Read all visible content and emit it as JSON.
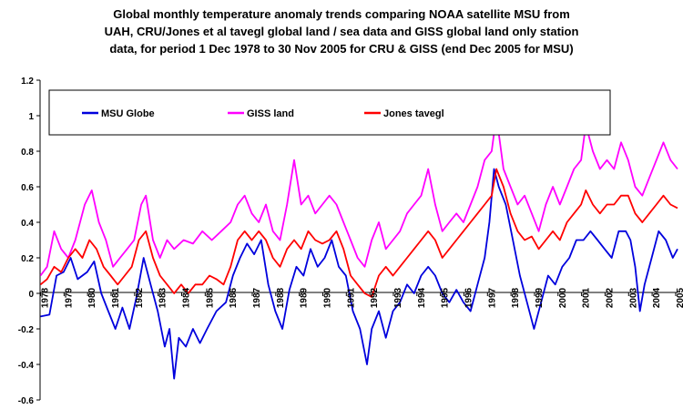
{
  "chart_data": {
    "type": "line",
    "title": [
      "Global monthly temperature anomaly trends comparing NOAA satellite MSU from",
      "UAH, CRU/Jones et al tavegl global land / sea data and GISS global land only station",
      "data, for period 1 Dec 1978 to 30 Nov 2005 for CRU & GISS  (end Dec 2005 for MSU)"
    ],
    "xlabel": "",
    "ylabel": "",
    "ylim": [
      -0.6,
      1.2
    ],
    "yticks": [
      "1.2",
      "1",
      "0.8",
      "0.6",
      "0.4",
      "0.2",
      "0",
      "-0.2",
      "-0.4",
      "-0.6"
    ],
    "ytick_values": [
      1.2,
      1.0,
      0.8,
      0.6,
      0.4,
      0.2,
      0.0,
      -0.2,
      -0.4,
      -0.6
    ],
    "xlim": [
      1978.9,
      2006.0
    ],
    "xticks": [
      "1978",
      "1979",
      "1980",
      "1981",
      "1982",
      "1983",
      "1984",
      "1985",
      "1986",
      "1987",
      "1988",
      "1989",
      "1990",
      "1991",
      "1992",
      "1993",
      "1994",
      "1995",
      "1996",
      "1997",
      "1998",
      "1999",
      "2000",
      "2001",
      "2002",
      "2003",
      "2004",
      "2005"
    ],
    "xtick_values": [
      1978.92,
      1979.92,
      1980.92,
      1981.92,
      1982.92,
      1983.92,
      1984.92,
      1985.92,
      1986.92,
      1987.92,
      1988.92,
      1989.92,
      1990.92,
      1991.92,
      1992.92,
      1993.92,
      1994.92,
      1995.92,
      1996.92,
      1997.92,
      1998.92,
      1999.92,
      2000.92,
      2001.92,
      2002.92,
      2003.92,
      2004.92,
      2005.92
    ],
    "grid": false,
    "legend_position": "top",
    "series": [
      {
        "name": "MSU Globe",
        "color": "#0000dd",
        "points": [
          [
            1978.92,
            -0.13
          ],
          [
            1979.3,
            -0.12
          ],
          [
            1979.6,
            0.1
          ],
          [
            1979.9,
            0.12
          ],
          [
            1980.2,
            0.2
          ],
          [
            1980.5,
            0.08
          ],
          [
            1980.9,
            0.12
          ],
          [
            1981.2,
            0.18
          ],
          [
            1981.5,
            0.0
          ],
          [
            1981.8,
            -0.1
          ],
          [
            1982.1,
            -0.2
          ],
          [
            1982.4,
            -0.08
          ],
          [
            1982.7,
            -0.2
          ],
          [
            1983.0,
            -0.02
          ],
          [
            1983.3,
            0.2
          ],
          [
            1983.6,
            0.05
          ],
          [
            1983.9,
            -0.1
          ],
          [
            1984.2,
            -0.3
          ],
          [
            1984.4,
            -0.2
          ],
          [
            1984.6,
            -0.48
          ],
          [
            1984.8,
            -0.25
          ],
          [
            1985.1,
            -0.3
          ],
          [
            1985.4,
            -0.2
          ],
          [
            1985.7,
            -0.28
          ],
          [
            1986.0,
            -0.2
          ],
          [
            1986.4,
            -0.1
          ],
          [
            1986.8,
            -0.05
          ],
          [
            1987.1,
            0.1
          ],
          [
            1987.4,
            0.2
          ],
          [
            1987.7,
            0.28
          ],
          [
            1988.0,
            0.22
          ],
          [
            1988.3,
            0.3
          ],
          [
            1988.6,
            0.05
          ],
          [
            1988.9,
            -0.1
          ],
          [
            1989.2,
            -0.2
          ],
          [
            1989.5,
            0.02
          ],
          [
            1989.8,
            0.15
          ],
          [
            1990.1,
            0.1
          ],
          [
            1990.4,
            0.25
          ],
          [
            1990.7,
            0.15
          ],
          [
            1991.0,
            0.2
          ],
          [
            1991.3,
            0.3
          ],
          [
            1991.6,
            0.15
          ],
          [
            1991.9,
            0.1
          ],
          [
            1992.2,
            -0.1
          ],
          [
            1992.5,
            -0.2
          ],
          [
            1992.8,
            -0.4
          ],
          [
            1993.0,
            -0.2
          ],
          [
            1993.3,
            -0.1
          ],
          [
            1993.6,
            -0.25
          ],
          [
            1993.9,
            -0.1
          ],
          [
            1994.2,
            -0.05
          ],
          [
            1994.5,
            0.05
          ],
          [
            1994.8,
            0.0
          ],
          [
            1995.1,
            0.1
          ],
          [
            1995.4,
            0.15
          ],
          [
            1995.7,
            0.1
          ],
          [
            1996.0,
            0.0
          ],
          [
            1996.3,
            -0.05
          ],
          [
            1996.6,
            0.02
          ],
          [
            1996.9,
            -0.05
          ],
          [
            1997.2,
            -0.1
          ],
          [
            1997.5,
            0.05
          ],
          [
            1997.8,
            0.2
          ],
          [
            1998.0,
            0.4
          ],
          [
            1998.2,
            0.7
          ],
          [
            1998.4,
            0.6
          ],
          [
            1998.7,
            0.5
          ],
          [
            1999.0,
            0.3
          ],
          [
            1999.3,
            0.1
          ],
          [
            1999.6,
            -0.05
          ],
          [
            1999.9,
            -0.2
          ],
          [
            2000.2,
            -0.05
          ],
          [
            2000.5,
            0.1
          ],
          [
            2000.8,
            0.05
          ],
          [
            2001.1,
            0.15
          ],
          [
            2001.4,
            0.2
          ],
          [
            2001.7,
            0.3
          ],
          [
            2002.0,
            0.3
          ],
          [
            2002.3,
            0.35
          ],
          [
            2002.6,
            0.3
          ],
          [
            2002.9,
            0.25
          ],
          [
            2003.2,
            0.2
          ],
          [
            2003.5,
            0.35
          ],
          [
            2003.8,
            0.35
          ],
          [
            2004.0,
            0.3
          ],
          [
            2004.2,
            0.15
          ],
          [
            2004.4,
            -0.1
          ],
          [
            2004.6,
            0.05
          ],
          [
            2004.9,
            0.2
          ],
          [
            2005.2,
            0.35
          ],
          [
            2005.5,
            0.3
          ],
          [
            2005.8,
            0.2
          ],
          [
            2006.0,
            0.25
          ]
        ]
      },
      {
        "name": "GISS land",
        "color": "#ff00ff",
        "points": [
          [
            1978.92,
            0.1
          ],
          [
            1979.2,
            0.15
          ],
          [
            1979.5,
            0.35
          ],
          [
            1979.8,
            0.25
          ],
          [
            1980.1,
            0.2
          ],
          [
            1980.4,
            0.3
          ],
          [
            1980.8,
            0.5
          ],
          [
            1981.1,
            0.58
          ],
          [
            1981.4,
            0.4
          ],
          [
            1981.7,
            0.3
          ],
          [
            1982.0,
            0.15
          ],
          [
            1982.3,
            0.2
          ],
          [
            1982.6,
            0.25
          ],
          [
            1982.9,
            0.3
          ],
          [
            1983.2,
            0.5
          ],
          [
            1983.4,
            0.55
          ],
          [
            1983.7,
            0.3
          ],
          [
            1984.0,
            0.2
          ],
          [
            1984.3,
            0.3
          ],
          [
            1984.6,
            0.25
          ],
          [
            1985.0,
            0.3
          ],
          [
            1985.4,
            0.28
          ],
          [
            1985.8,
            0.35
          ],
          [
            1986.2,
            0.3
          ],
          [
            1986.6,
            0.35
          ],
          [
            1987.0,
            0.4
          ],
          [
            1987.3,
            0.5
          ],
          [
            1987.6,
            0.55
          ],
          [
            1987.9,
            0.45
          ],
          [
            1988.2,
            0.4
          ],
          [
            1988.5,
            0.5
          ],
          [
            1988.8,
            0.35
          ],
          [
            1989.1,
            0.3
          ],
          [
            1989.4,
            0.5
          ],
          [
            1989.7,
            0.75
          ],
          [
            1990.0,
            0.5
          ],
          [
            1990.3,
            0.55
          ],
          [
            1990.6,
            0.45
          ],
          [
            1990.9,
            0.5
          ],
          [
            1991.2,
            0.55
          ],
          [
            1991.5,
            0.5
          ],
          [
            1991.8,
            0.4
          ],
          [
            1992.1,
            0.3
          ],
          [
            1992.4,
            0.2
          ],
          [
            1992.7,
            0.15
          ],
          [
            1993.0,
            0.3
          ],
          [
            1993.3,
            0.4
          ],
          [
            1993.6,
            0.25
          ],
          [
            1993.9,
            0.3
          ],
          [
            1994.2,
            0.35
          ],
          [
            1994.5,
            0.45
          ],
          [
            1994.8,
            0.5
          ],
          [
            1995.1,
            0.55
          ],
          [
            1995.4,
            0.7
          ],
          [
            1995.7,
            0.5
          ],
          [
            1996.0,
            0.35
          ],
          [
            1996.3,
            0.4
          ],
          [
            1996.6,
            0.45
          ],
          [
            1996.9,
            0.4
          ],
          [
            1997.2,
            0.5
          ],
          [
            1997.5,
            0.6
          ],
          [
            1997.8,
            0.75
          ],
          [
            1998.1,
            0.8
          ],
          [
            1998.3,
            1.0
          ],
          [
            1998.6,
            0.7
          ],
          [
            1998.9,
            0.6
          ],
          [
            1999.2,
            0.5
          ],
          [
            1999.5,
            0.55
          ],
          [
            1999.8,
            0.45
          ],
          [
            2000.1,
            0.35
          ],
          [
            2000.4,
            0.5
          ],
          [
            2000.7,
            0.6
          ],
          [
            2001.0,
            0.5
          ],
          [
            2001.3,
            0.6
          ],
          [
            2001.6,
            0.7
          ],
          [
            2001.9,
            0.75
          ],
          [
            2002.1,
            0.95
          ],
          [
            2002.4,
            0.8
          ],
          [
            2002.7,
            0.7
          ],
          [
            2003.0,
            0.75
          ],
          [
            2003.3,
            0.7
          ],
          [
            2003.6,
            0.85
          ],
          [
            2003.9,
            0.75
          ],
          [
            2004.2,
            0.6
          ],
          [
            2004.5,
            0.55
          ],
          [
            2004.8,
            0.65
          ],
          [
            2005.1,
            0.75
          ],
          [
            2005.4,
            0.85
          ],
          [
            2005.7,
            0.75
          ],
          [
            2006.0,
            0.7
          ]
        ]
      },
      {
        "name": "Jones tavegl",
        "color": "#ff0000",
        "points": [
          [
            1978.92,
            0.05
          ],
          [
            1979.2,
            0.08
          ],
          [
            1979.5,
            0.15
          ],
          [
            1979.8,
            0.12
          ],
          [
            1980.1,
            0.2
          ],
          [
            1980.4,
            0.25
          ],
          [
            1980.7,
            0.2
          ],
          [
            1981.0,
            0.3
          ],
          [
            1981.3,
            0.25
          ],
          [
            1981.6,
            0.15
          ],
          [
            1981.9,
            0.1
          ],
          [
            1982.2,
            0.05
          ],
          [
            1982.5,
            0.1
          ],
          [
            1982.8,
            0.15
          ],
          [
            1983.1,
            0.3
          ],
          [
            1983.4,
            0.35
          ],
          [
            1983.7,
            0.2
          ],
          [
            1984.0,
            0.1
          ],
          [
            1984.3,
            0.05
          ],
          [
            1984.6,
            0.0
          ],
          [
            1984.9,
            0.05
          ],
          [
            1985.2,
            0.0
          ],
          [
            1985.5,
            0.05
          ],
          [
            1985.8,
            0.05
          ],
          [
            1986.1,
            0.1
          ],
          [
            1986.4,
            0.08
          ],
          [
            1986.7,
            0.05
          ],
          [
            1987.0,
            0.15
          ],
          [
            1987.3,
            0.3
          ],
          [
            1987.6,
            0.35
          ],
          [
            1987.9,
            0.3
          ],
          [
            1988.2,
            0.35
          ],
          [
            1988.5,
            0.3
          ],
          [
            1988.8,
            0.2
          ],
          [
            1989.1,
            0.15
          ],
          [
            1989.4,
            0.25
          ],
          [
            1989.7,
            0.3
          ],
          [
            1990.0,
            0.25
          ],
          [
            1990.3,
            0.35
          ],
          [
            1990.6,
            0.3
          ],
          [
            1990.9,
            0.28
          ],
          [
            1991.2,
            0.3
          ],
          [
            1991.5,
            0.35
          ],
          [
            1991.8,
            0.25
          ],
          [
            1992.1,
            0.1
          ],
          [
            1992.4,
            0.05
          ],
          [
            1992.7,
            0.0
          ],
          [
            1993.0,
            -0.02
          ],
          [
            1993.3,
            0.1
          ],
          [
            1993.6,
            0.15
          ],
          [
            1993.9,
            0.1
          ],
          [
            1994.2,
            0.15
          ],
          [
            1994.5,
            0.2
          ],
          [
            1994.8,
            0.25
          ],
          [
            1995.1,
            0.3
          ],
          [
            1995.4,
            0.35
          ],
          [
            1995.7,
            0.3
          ],
          [
            1996.0,
            0.2
          ],
          [
            1996.3,
            0.25
          ],
          [
            1996.6,
            0.3
          ],
          [
            1996.9,
            0.35
          ],
          [
            1997.2,
            0.4
          ],
          [
            1997.5,
            0.45
          ],
          [
            1997.8,
            0.5
          ],
          [
            1998.1,
            0.55
          ],
          [
            1998.3,
            0.7
          ],
          [
            1998.6,
            0.6
          ],
          [
            1998.9,
            0.45
          ],
          [
            1999.2,
            0.35
          ],
          [
            1999.5,
            0.3
          ],
          [
            1999.8,
            0.32
          ],
          [
            2000.1,
            0.25
          ],
          [
            2000.4,
            0.3
          ],
          [
            2000.7,
            0.35
          ],
          [
            2001.0,
            0.3
          ],
          [
            2001.3,
            0.4
          ],
          [
            2001.6,
            0.45
          ],
          [
            2001.9,
            0.5
          ],
          [
            2002.1,
            0.58
          ],
          [
            2002.4,
            0.5
          ],
          [
            2002.7,
            0.45
          ],
          [
            2003.0,
            0.5
          ],
          [
            2003.3,
            0.5
          ],
          [
            2003.6,
            0.55
          ],
          [
            2003.9,
            0.55
          ],
          [
            2004.2,
            0.45
          ],
          [
            2004.5,
            0.4
          ],
          [
            2004.8,
            0.45
          ],
          [
            2005.1,
            0.5
          ],
          [
            2005.4,
            0.55
          ],
          [
            2005.7,
            0.5
          ],
          [
            2006.0,
            0.48
          ]
        ]
      }
    ]
  }
}
